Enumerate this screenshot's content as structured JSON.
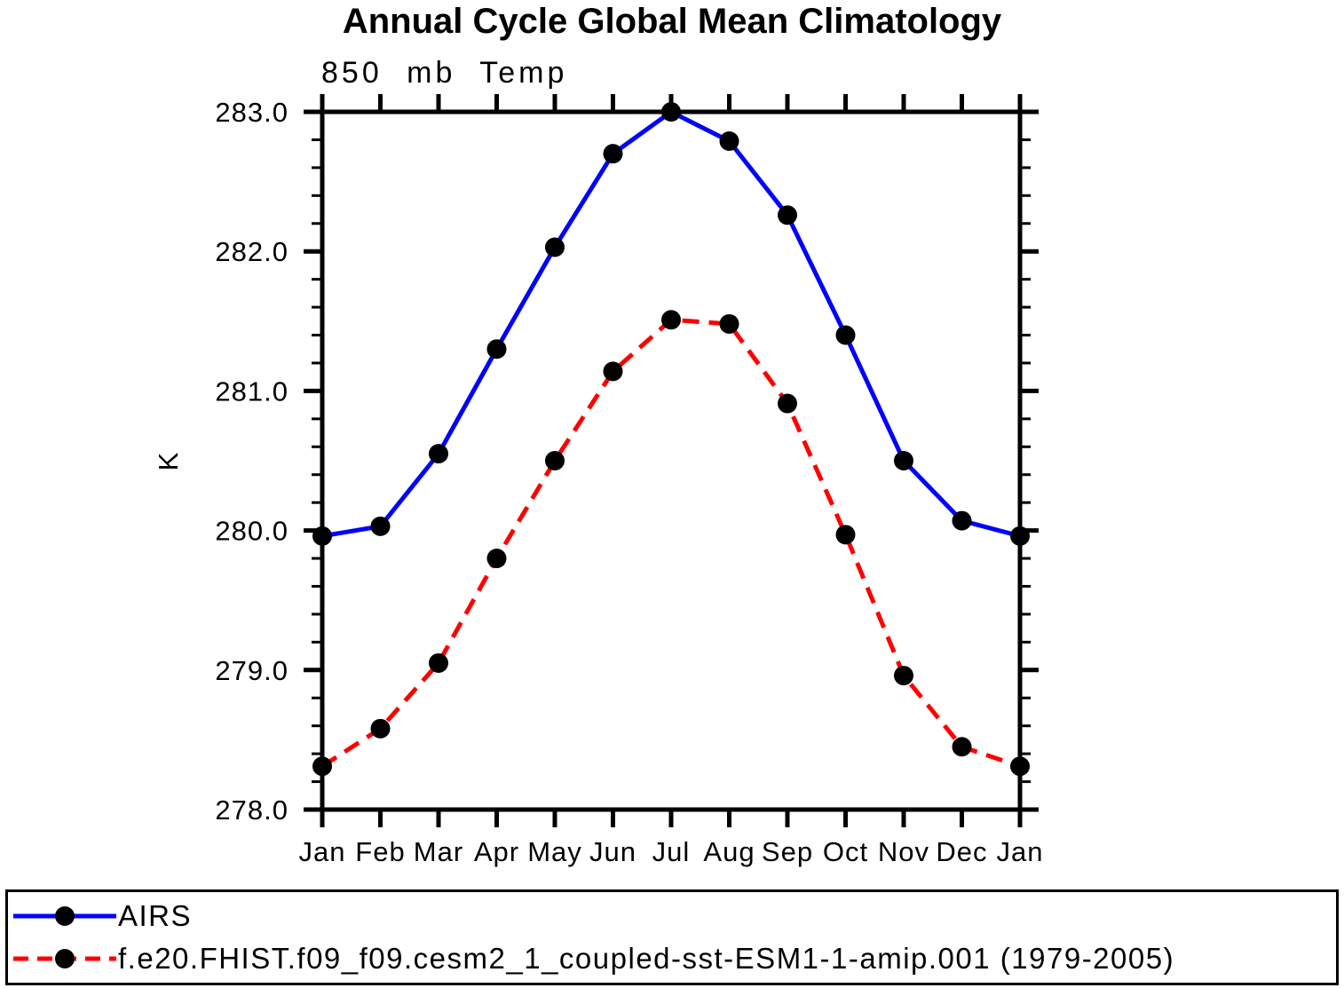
{
  "title": "Annual Cycle Global Mean Climatology",
  "chart_data": {
    "type": "line",
    "subtitle": "850 mb Temp",
    "ylabel": "K",
    "categories": [
      "Jan",
      "Feb",
      "Mar",
      "Apr",
      "May",
      "Jun",
      "Jul",
      "Aug",
      "Sep",
      "Oct",
      "Nov",
      "Dec",
      "Jan"
    ],
    "ylim": [
      278.0,
      283.0
    ],
    "y_major_tick_step": 1.0,
    "y_minor_tick_step": 0.2,
    "y_tick_labels": [
      "278.0",
      "279.0",
      "280.0",
      "281.0",
      "282.0",
      "283.0"
    ],
    "grid": false,
    "legend_position": "bottom-left-box",
    "marker": {
      "shape": "circle",
      "color": "#000000"
    },
    "axis_color": "#000000",
    "series": [
      {
        "name": "AIRS",
        "color": "#0000ff",
        "line_style": "solid",
        "values": [
          279.96,
          280.03,
          280.55,
          281.3,
          282.03,
          282.7,
          283.0,
          282.79,
          282.26,
          281.4,
          280.5,
          280.07,
          279.96
        ]
      },
      {
        "name": "f.e20.FHIST.f09_f09.cesm2_1_coupled-sst-ESM1-1-amip.001 (1979-2005)",
        "color": "#ff0000",
        "line_style": "dashed",
        "values": [
          278.31,
          278.58,
          279.05,
          279.8,
          280.5,
          281.14,
          281.51,
          281.48,
          280.91,
          279.97,
          278.96,
          278.45,
          278.31
        ]
      }
    ]
  }
}
